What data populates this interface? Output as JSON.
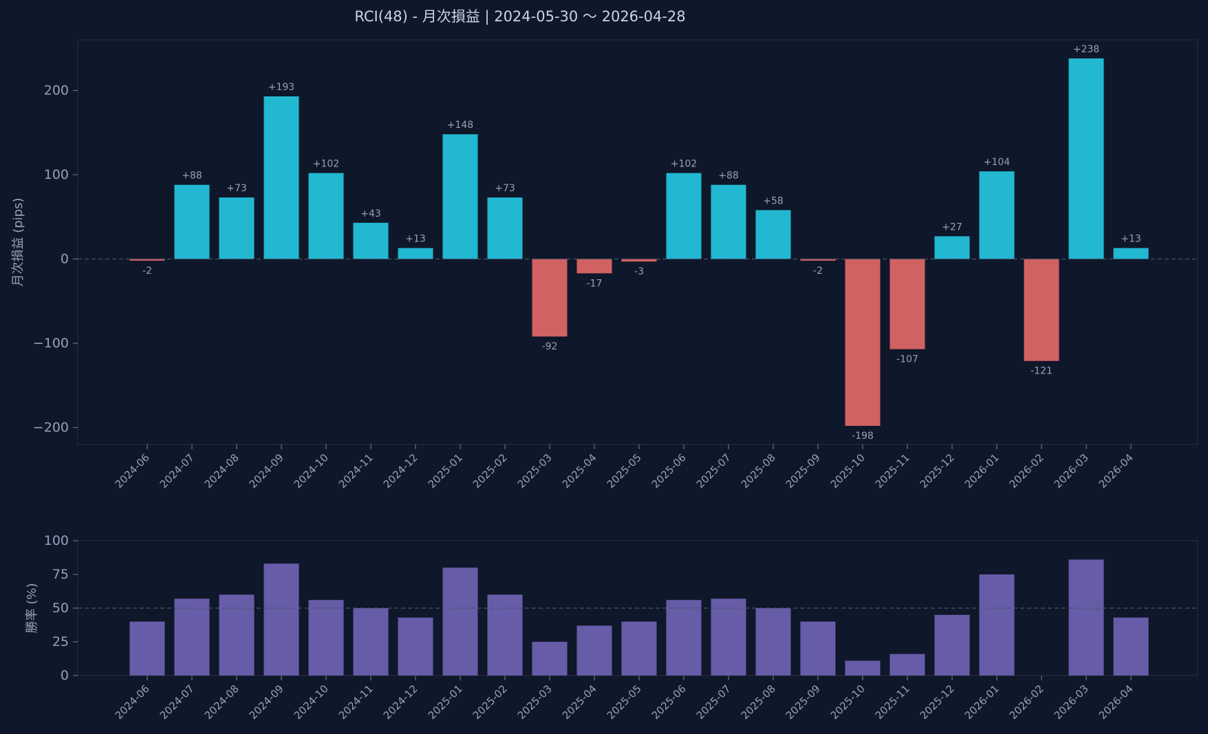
{
  "chart_data": [
    {
      "type": "bar",
      "title": "RCI(48) - 月次損益 | 2024-05-30 〜 2026-04-28",
      "ylabel": "月次損益 (pips)",
      "xlabel": "",
      "ylim": [
        -220,
        260
      ],
      "yticks": [
        -200,
        -100,
        0,
        100,
        200
      ],
      "ytick_labels": [
        "−200",
        "−100",
        "0",
        "100",
        "200"
      ],
      "reference_line": 0,
      "categories": [
        "2024-06",
        "2024-07",
        "2024-08",
        "2024-09",
        "2024-10",
        "2024-11",
        "2024-12",
        "2025-01",
        "2025-02",
        "2025-03",
        "2025-04",
        "2025-05",
        "2025-06",
        "2025-07",
        "2025-08",
        "2025-09",
        "2025-10",
        "2025-11",
        "2025-12",
        "2026-01",
        "2026-02",
        "2026-03",
        "2026-04"
      ],
      "values": [
        -2,
        88,
        73,
        193,
        102,
        43,
        13,
        148,
        73,
        -92,
        -17,
        -3,
        102,
        88,
        58,
        -2,
        -198,
        -107,
        27,
        104,
        -121,
        238,
        13
      ],
      "data_labels": [
        "-2",
        "+88",
        "+73",
        "+193",
        "+102",
        "+43",
        "+13",
        "+148",
        "+73",
        "-92",
        "-17",
        "-3",
        "+102",
        "+88",
        "+58",
        "-2",
        "-198",
        "-107",
        "+27",
        "+104",
        "-121",
        "+238",
        "+13"
      ],
      "colors": {
        "positive": "#22b8d1",
        "negative": "#d16262"
      }
    },
    {
      "type": "bar",
      "title": "",
      "ylabel": "勝率 (%)",
      "xlabel": "",
      "ylim": [
        0,
        100
      ],
      "yticks": [
        0,
        25,
        50,
        75,
        100
      ],
      "ytick_labels": [
        "0",
        "25",
        "50",
        "75",
        "100"
      ],
      "reference_line": 50,
      "categories": [
        "2024-06",
        "2024-07",
        "2024-08",
        "2024-09",
        "2024-10",
        "2024-11",
        "2024-12",
        "2025-01",
        "2025-02",
        "2025-03",
        "2025-04",
        "2025-05",
        "2025-06",
        "2025-07",
        "2025-08",
        "2025-09",
        "2025-10",
        "2025-11",
        "2025-12",
        "2026-01",
        "2026-02",
        "2026-03",
        "2026-04"
      ],
      "values": [
        40,
        57,
        60,
        83,
        56,
        50,
        43,
        80,
        60,
        25,
        37,
        40,
        56,
        57,
        50,
        40,
        11,
        16,
        45,
        75,
        0,
        86,
        43
      ],
      "colors": {
        "bar": "#675ca8"
      }
    }
  ]
}
